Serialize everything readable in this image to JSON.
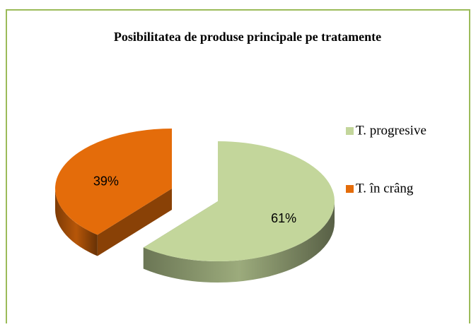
{
  "chart_data": {
    "type": "pie3d",
    "title": "Posibilitatea de produse principale pe tratamente",
    "categories": [
      "T. progresive",
      "T. în crâng"
    ],
    "values": [
      61,
      39
    ],
    "value_labels": [
      "61%",
      "39%"
    ],
    "colors": [
      "#c3d69b",
      "#e46c0a"
    ],
    "legend": "right"
  }
}
